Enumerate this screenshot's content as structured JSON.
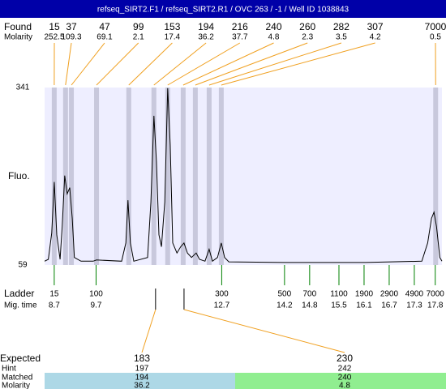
{
  "title": "refseq_SIRT2.F1 / refseq_SIRT2.R1 / OVC 263 / -1 / Well ID 1038843",
  "found": {
    "label": "Found",
    "molarity_label": "Molarity",
    "sizes": [
      15,
      37,
      47,
      99,
      153,
      194,
      216,
      240,
      260,
      282,
      307,
      7000
    ],
    "molarities": [
      252.5,
      109.3,
      69.1,
      2.1,
      17.4,
      36.2,
      37.7,
      4.8,
      2.3,
      3.5,
      4.2,
      0.5
    ],
    "times": [
      8.7,
      8.97,
      9.11,
      9.71,
      10.48,
      11.08,
      11.41,
      11.78,
      12.07,
      12.4,
      12.69,
      17.81
    ]
  },
  "chart_data": {
    "type": "line",
    "ylabel": "Fluo.",
    "ylim": [
      59,
      341
    ],
    "yticks": [
      59,
      341
    ],
    "xlim": [
      8.47,
      17.96
    ],
    "x": [
      8.47,
      8.56,
      8.64,
      8.7,
      8.76,
      8.84,
      8.89,
      8.95,
      9.01,
      9.07,
      9.13,
      9.18,
      9.34,
      9.63,
      9.71,
      10.31,
      10.41,
      10.46,
      10.52,
      10.6,
      10.93,
      11.01,
      11.08,
      11.14,
      11.2,
      11.26,
      11.34,
      11.41,
      11.47,
      11.53,
      11.63,
      11.72,
      11.8,
      11.88,
      11.98,
      12.09,
      12.17,
      12.3,
      12.4,
      12.48,
      12.6,
      12.69,
      12.77,
      12.87,
      14.18,
      16.12,
      17.48,
      17.62,
      17.71,
      17.77,
      17.83,
      17.91,
      17.96
    ],
    "series": [
      {
        "color": "#000000",
        "values": [
          65,
          68,
          110,
          191,
          107,
          68,
          120,
          201,
          172,
          182,
          133,
          71,
          65,
          65,
          67,
          65,
          94,
          162,
          94,
          65,
          71,
          159,
          296,
          224,
          107,
          88,
          159,
          340,
          250,
          94,
          78,
          88,
          94,
          78,
          71,
          78,
          68,
          65,
          84,
          65,
          71,
          94,
          71,
          64,
          63,
          63,
          65,
          94,
          133,
          143,
          120,
          71,
          65
        ]
      }
    ],
    "background": "#eeeeff",
    "band_color": "#c8c8dc"
  },
  "ladder": {
    "label": "Ladder",
    "time_label": "Mig. time",
    "sizes": [
      15,
      100,
      300,
      500,
      700,
      1100,
      1900,
      2900,
      4900,
      7000
    ],
    "times": [
      8.7,
      9.7,
      12.7,
      14.2,
      14.8,
      15.5,
      16.1,
      16.7,
      17.3,
      17.8
    ],
    "color": "#008000"
  },
  "expected": {
    "label": "Expected",
    "hint_label": "Hint",
    "matched_label": "Matched",
    "molarity_label": "Molarity",
    "sizes": [
      183,
      230
    ],
    "times": [
      11.12,
      11.8
    ],
    "hints": [
      197,
      242
    ],
    "matched": [
      194,
      240
    ],
    "molarities": [
      36.2,
      4.8
    ],
    "colors": [
      "#add8e6",
      "#90ee90"
    ]
  }
}
